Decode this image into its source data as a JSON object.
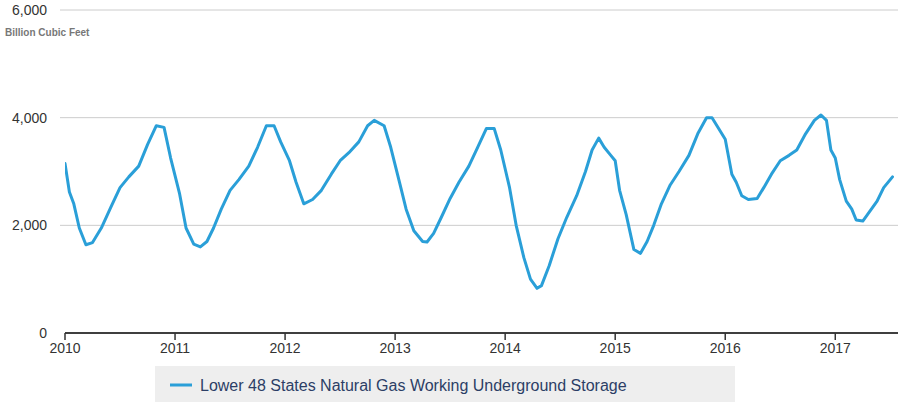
{
  "chart_data": {
    "type": "line",
    "y_label": "Billion Cubic Feet",
    "x": [
      2010,
      2010.04,
      2010.08,
      2010.13,
      2010.19,
      2010.25,
      2010.33,
      2010.42,
      2010.5,
      2010.58,
      2010.67,
      2010.75,
      2010.83,
      2010.9,
      2010.96,
      2011.04,
      2011.1,
      2011.17,
      2011.23,
      2011.29,
      2011.35,
      2011.42,
      2011.5,
      2011.58,
      2011.67,
      2011.75,
      2011.83,
      2011.9,
      2011.96,
      2012.04,
      2012.1,
      2012.17,
      2012.25,
      2012.33,
      2012.42,
      2012.5,
      2012.58,
      2012.67,
      2012.75,
      2012.81,
      2012.9,
      2012.96,
      2013.04,
      2013.1,
      2013.17,
      2013.25,
      2013.29,
      2013.35,
      2013.42,
      2013.5,
      2013.58,
      2013.67,
      2013.75,
      2013.83,
      2013.9,
      2013.96,
      2014.04,
      2014.1,
      2014.17,
      2014.23,
      2014.29,
      2014.33,
      2014.4,
      2014.48,
      2014.56,
      2014.65,
      2014.73,
      2014.79,
      2014.85,
      2014.9,
      2014.96,
      2015,
      2015.04,
      2015.1,
      2015.17,
      2015.23,
      2015.29,
      2015.35,
      2015.42,
      2015.5,
      2015.58,
      2015.67,
      2015.75,
      2015.83,
      2015.88,
      2015.94,
      2016,
      2016.06,
      2016.1,
      2016.15,
      2016.21,
      2016.29,
      2016.35,
      2016.42,
      2016.5,
      2016.58,
      2016.65,
      2016.73,
      2016.81,
      2016.87,
      2016.92,
      2016.96,
      2017,
      2017.04,
      2017.1,
      2017.15,
      2017.19,
      2017.25,
      2017.31,
      2017.38,
      2017.44,
      2017.52
    ],
    "series": [
      {
        "name": "Lower 48 States Natural Gas Working Underground Storage",
        "color": "#2a9fd8",
        "values": [
          3150,
          2620,
          2400,
          1950,
          1640,
          1680,
          1950,
          2350,
          2700,
          2900,
          3100,
          3500,
          3850,
          3820,
          3250,
          2600,
          1950,
          1650,
          1600,
          1700,
          1950,
          2300,
          2650,
          2850,
          3100,
          3450,
          3850,
          3850,
          3550,
          3200,
          2800,
          2400,
          2480,
          2650,
          2950,
          3200,
          3350,
          3550,
          3850,
          3950,
          3850,
          3450,
          2800,
          2300,
          1900,
          1700,
          1690,
          1850,
          2150,
          2500,
          2800,
          3100,
          3450,
          3800,
          3800,
          3400,
          2700,
          2000,
          1400,
          1000,
          830,
          880,
          1250,
          1750,
          2150,
          2550,
          3000,
          3400,
          3620,
          3450,
          3300,
          3200,
          2650,
          2200,
          1550,
          1480,
          1700,
          2000,
          2400,
          2750,
          3000,
          3300,
          3700,
          4000,
          4000,
          3800,
          3600,
          2950,
          2800,
          2550,
          2480,
          2500,
          2700,
          2950,
          3200,
          3300,
          3400,
          3700,
          3950,
          4050,
          3950,
          3400,
          3250,
          2850,
          2450,
          2300,
          2100,
          2080,
          2250,
          2450,
          2700,
          2900
        ]
      }
    ],
    "xlim": [
      2010,
      2017.57
    ],
    "xticks": [
      2010,
      2011,
      2012,
      2013,
      2014,
      2015,
      2016,
      2017
    ],
    "ylim": [
      0,
      6000
    ],
    "yticks": [
      0,
      {
        "value": 2000,
        "label": "2,000"
      },
      {
        "value": 4000,
        "label": "4,000"
      },
      {
        "value": 6000,
        "label": "6,000"
      }
    ],
    "grid": true,
    "legend": "bottom"
  }
}
